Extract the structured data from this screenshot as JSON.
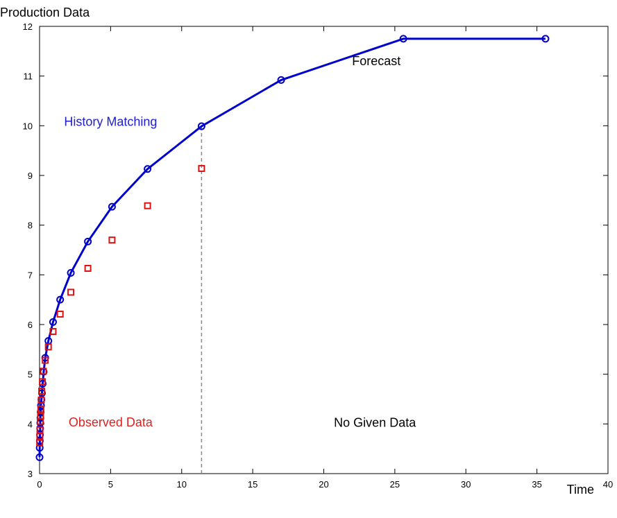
{
  "chart_data": {
    "type": "line",
    "ylabel": "Production Data",
    "xlabel": "Time",
    "xlim": [
      0,
      40
    ],
    "ylim": [
      3,
      12
    ],
    "xticks": [
      "0",
      "5",
      "10",
      "15",
      "20",
      "25",
      "30",
      "35",
      "40"
    ],
    "yticks": [
      "3",
      "4",
      "5",
      "6",
      "7",
      "8",
      "9",
      "10",
      "11",
      "12"
    ],
    "grid": false,
    "series": [
      {
        "name": "",
        "color": "#0000cc",
        "line": true,
        "marker": "circle",
        "x": [
          0.0,
          0.01,
          0.02,
          0.03,
          0.04,
          0.05,
          0.06,
          0.08,
          0.1,
          0.13,
          0.17,
          0.22,
          0.29,
          0.4,
          0.62,
          0.95,
          1.45,
          2.2,
          3.4,
          5.1,
          7.6,
          11.4,
          17.0,
          25.6,
          35.6
        ],
        "y": [
          3.33,
          3.52,
          3.66,
          3.78,
          3.91,
          4.02,
          4.12,
          4.24,
          4.37,
          4.49,
          4.62,
          4.81,
          5.05,
          5.33,
          5.67,
          6.05,
          6.5,
          7.04,
          7.67,
          8.37,
          9.13,
          9.99,
          10.92,
          11.75,
          11.75
        ]
      },
      {
        "name": "",
        "color": "#dd1111",
        "line": false,
        "marker": "square",
        "x": [
          0.01,
          0.02,
          0.03,
          0.05,
          0.07,
          0.09,
          0.12,
          0.15,
          0.2,
          0.27,
          0.4,
          0.62,
          0.95,
          1.45,
          2.2,
          3.4,
          5.1,
          7.6,
          11.4
        ],
        "y": [
          3.62,
          3.75,
          3.88,
          4.05,
          4.16,
          4.3,
          4.48,
          4.66,
          4.85,
          5.06,
          5.28,
          5.55,
          5.86,
          6.21,
          6.65,
          7.13,
          7.7,
          8.39,
          9.14
        ]
      }
    ],
    "vline": {
      "x": 11.4,
      "style": "dashed",
      "color": "#888888"
    },
    "annotations": [
      {
        "text": "History Matching",
        "x": 5.0,
        "y": 10.0,
        "color": "#2020cc"
      },
      {
        "text": "Observed Data",
        "x": 5.0,
        "y": 3.95,
        "color": "#dd2222"
      },
      {
        "text": "Forecast",
        "x": 23.7,
        "y": 11.22,
        "color": "#000000"
      },
      {
        "text": "No Given Data",
        "x": 23.6,
        "y": 3.94,
        "color": "#000000"
      }
    ]
  }
}
